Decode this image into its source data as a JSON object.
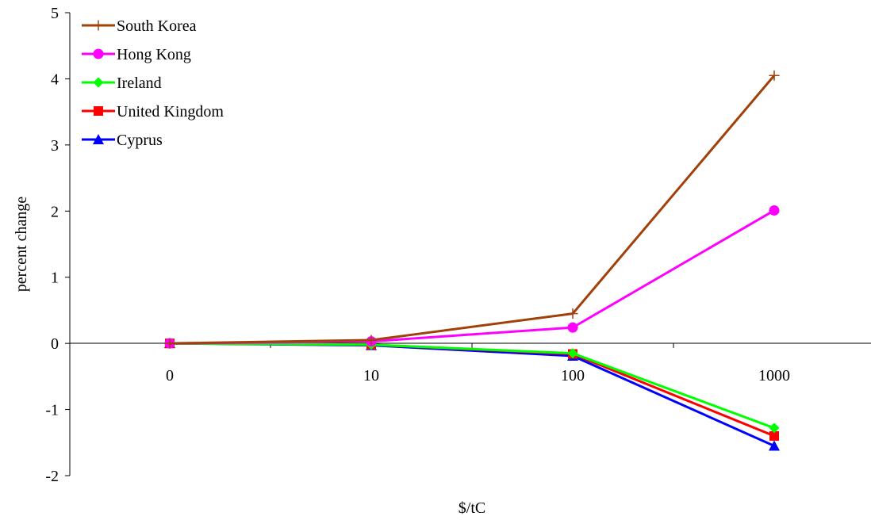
{
  "chart_data": {
    "type": "line",
    "title": "",
    "xlabel": "$/tC",
    "ylabel": "percent change",
    "categories": [
      "0",
      "10",
      "100",
      "1000"
    ],
    "ylim": [
      -2,
      5
    ],
    "yticks": [
      -2,
      -1,
      0,
      1,
      2,
      3,
      4,
      5
    ],
    "grid": false,
    "legend_position": "top-left",
    "series": [
      {
        "name": "South Korea",
        "values": [
          0,
          0.05,
          0.45,
          4.05
        ],
        "color": "#A0410A",
        "marker": "plus"
      },
      {
        "name": "Hong Kong",
        "values": [
          0,
          0.03,
          0.24,
          2.01
        ],
        "color": "#FF00FF",
        "marker": "circle"
      },
      {
        "name": "Ireland",
        "values": [
          0,
          -0.02,
          -0.15,
          -1.28
        ],
        "color": "#00FF00",
        "marker": "diamond"
      },
      {
        "name": "United Kingdom",
        "values": [
          0,
          -0.02,
          -0.16,
          -1.4
        ],
        "color": "#FF0000",
        "marker": "square"
      },
      {
        "name": "Cyprus",
        "values": [
          0,
          -0.03,
          -0.19,
          -1.55
        ],
        "color": "#0000FF",
        "marker": "triangle"
      }
    ]
  }
}
